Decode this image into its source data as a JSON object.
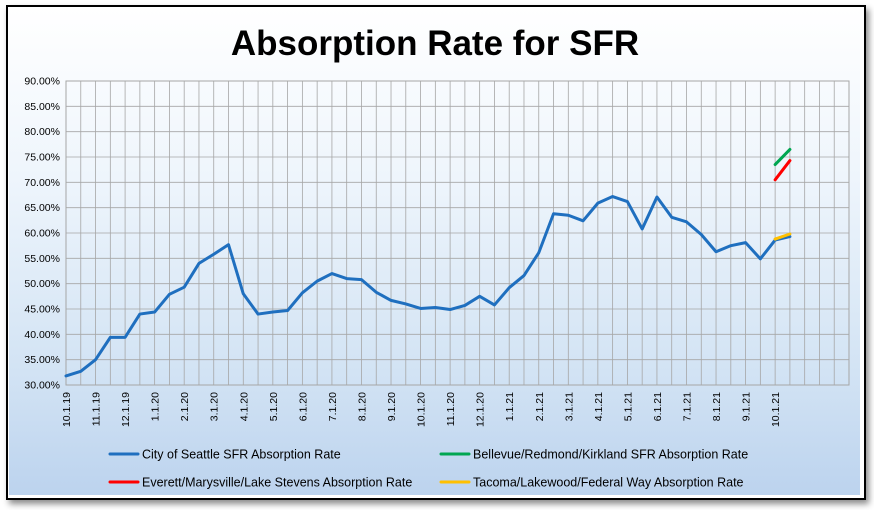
{
  "chart_data": {
    "type": "line",
    "title": "Absorption Rate for SFR",
    "xlabel": "",
    "ylabel": "",
    "ylim": [
      0.3,
      0.9
    ],
    "y_ticks": [
      "30.00%",
      "35.00%",
      "40.00%",
      "45.00%",
      "50.00%",
      "55.00%",
      "60.00%",
      "65.00%",
      "70.00%",
      "75.00%",
      "80.00%",
      "85.00%",
      "90.00%"
    ],
    "x_labels": [
      "10.1.19",
      "11.1.19",
      "12.1.19",
      "1.1.20",
      "2.1.20",
      "3.1.20",
      "4.1.20",
      "5.1.20",
      "6.1.20",
      "7.1.20",
      "8.1.20",
      "9.1.20",
      "10.1.20",
      "11.1.20",
      "12.1.20",
      "1.1.21",
      "2.1.21",
      "3.1.21",
      "4.1.21",
      "5.1.21",
      "6.1.21",
      "7.1.21",
      "8.1.21",
      "9.1.21",
      "10.1.21"
    ],
    "x_points": 54,
    "grid": true,
    "legend_position": "bottom",
    "series": [
      {
        "name": "City of Seattle SFR Absorption Rate",
        "color": "#1f6fbf",
        "start_index": 0,
        "values": [
          0.318,
          0.327,
          0.35,
          0.394,
          0.394,
          0.44,
          0.444,
          0.479,
          0.493,
          0.54,
          0.558,
          0.577,
          0.48,
          0.44,
          0.444,
          0.447,
          0.482,
          0.505,
          0.52,
          0.51,
          0.508,
          0.483,
          0.467,
          0.46,
          0.451,
          0.453,
          0.449,
          0.457,
          0.475,
          0.458,
          0.492,
          0.516,
          0.561,
          0.638,
          0.635,
          0.624,
          0.659,
          0.672,
          0.662,
          0.608,
          0.671,
          0.631,
          0.622,
          0.597,
          0.563,
          0.575,
          0.581,
          0.549,
          0.586,
          0.593
        ]
      },
      {
        "name": "Bellevue/Redmond/Kirkland SFR Absorption Rate",
        "color": "#00a651",
        "start_index": 48,
        "values": [
          0.735,
          0.765
        ]
      },
      {
        "name": "Everett/Marysville/Lake Stevens Absorption Rate",
        "color": "#ff0000",
        "start_index": 48,
        "values": [
          0.705,
          0.743
        ]
      },
      {
        "name": "Tacoma/Lakewood/Federal Way Absorption Rate",
        "color": "#ffc000",
        "start_index": 48,
        "values": [
          0.588,
          0.598
        ]
      }
    ]
  }
}
